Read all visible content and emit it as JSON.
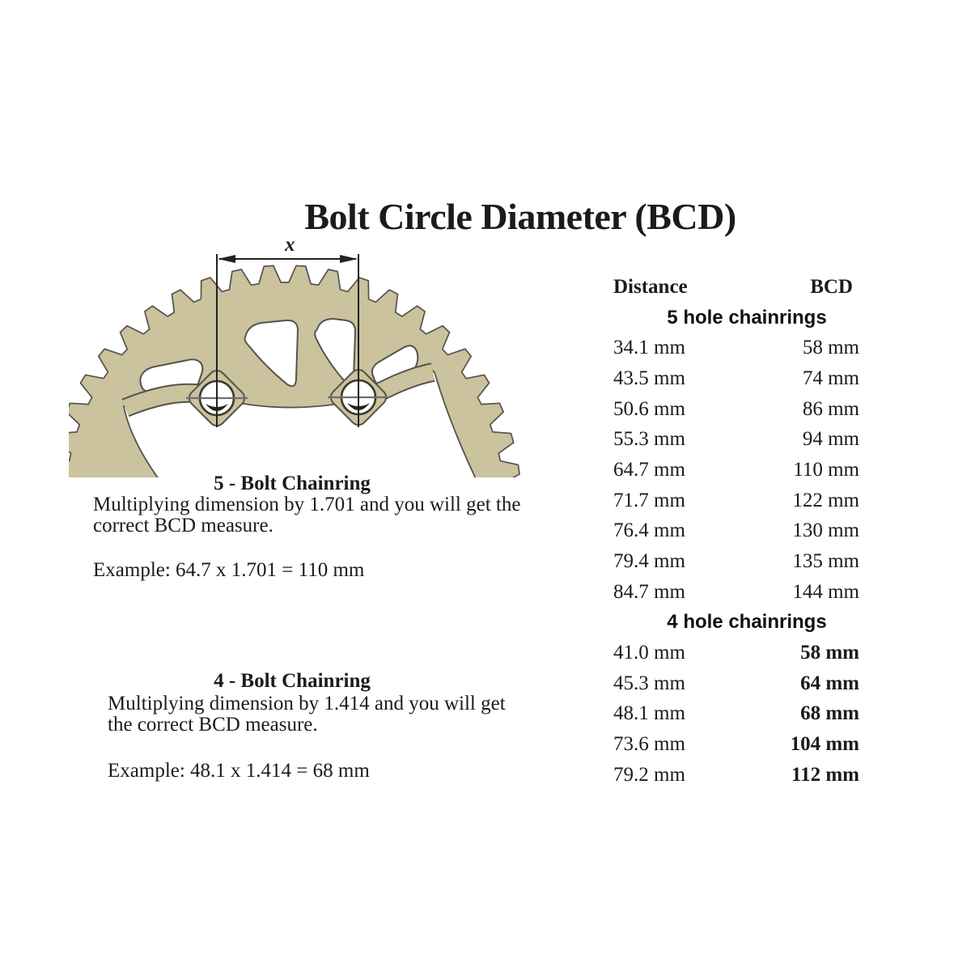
{
  "page": {
    "title": "Bolt Circle Diameter (BCD)"
  },
  "figure": {
    "dimension_label": "x",
    "chainring_color": "#cbc29e",
    "outline_color": "#55534a",
    "line_color": "#222222",
    "crosshair_color": "#6e6e6e"
  },
  "sections": [
    {
      "heading": "5 - Bolt Chainring",
      "line1": "Multiplying dimension by 1.701 and you will get the",
      "line2": "correct BCD measure.",
      "example": "Example: 64.7 x 1.701 = 110 mm"
    },
    {
      "heading": "4 - Bolt Chainring",
      "line1": "Multiplying dimension by 1.414 and you will get",
      "line2": "the correct BCD measure.",
      "example": "Example: 48.1 x 1.414 = 68 mm"
    }
  ],
  "table": {
    "columns": [
      "Distance",
      "BCD"
    ],
    "groups": [
      {
        "label": "5 hole chainrings",
        "rows": [
          {
            "distance": "34.1 mm",
            "bcd": "58 mm"
          },
          {
            "distance": "43.5 mm",
            "bcd": "74 mm"
          },
          {
            "distance": "50.6 mm",
            "bcd": "86 mm"
          },
          {
            "distance": "55.3 mm",
            "bcd": "94 mm"
          },
          {
            "distance": "64.7 mm",
            "bcd": "110 mm"
          },
          {
            "distance": "71.7 mm",
            "bcd": "122 mm"
          },
          {
            "distance": "76.4 mm",
            "bcd": "130 mm"
          },
          {
            "distance": "79.4 mm",
            "bcd": "135 mm"
          },
          {
            "distance": "84.7 mm",
            "bcd": "144 mm"
          }
        ]
      },
      {
        "label": "4 hole chainrings",
        "rows": [
          {
            "distance": "41.0 mm",
            "bcd": "58 mm"
          },
          {
            "distance": "45.3 mm",
            "bcd": "64 mm"
          },
          {
            "distance": "48.1 mm",
            "bcd": "68 mm"
          },
          {
            "distance": "73.6 mm",
            "bcd": "104 mm"
          },
          {
            "distance": "79.2 mm",
            "bcd": "112 mm"
          }
        ]
      }
    ]
  }
}
